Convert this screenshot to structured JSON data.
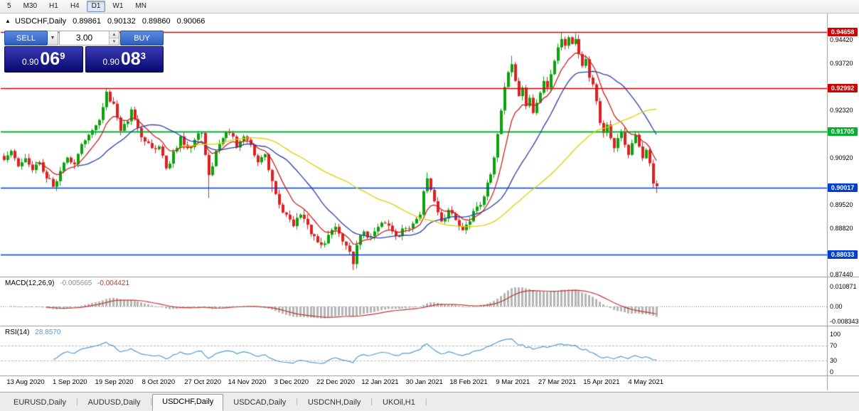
{
  "toolbar": {
    "timeframes": [
      {
        "label": "5",
        "active": false
      },
      {
        "label": "M30",
        "active": false
      },
      {
        "label": "H1",
        "active": false
      },
      {
        "label": "H4",
        "active": false
      },
      {
        "label": "D1",
        "active": true
      },
      {
        "label": "W1",
        "active": false
      },
      {
        "label": "MN",
        "active": false
      }
    ]
  },
  "chart_header": {
    "symbol": "USDCHF,Daily",
    "open": "0.89861",
    "high": "0.90132",
    "low": "0.89860",
    "close": "0.90066"
  },
  "trade_panel": {
    "sell_label": "SELL",
    "buy_label": "BUY",
    "volume": "3.00",
    "sell_price": {
      "prefix": "0.90",
      "big": "06",
      "sup": "9"
    },
    "buy_price": {
      "prefix": "0.90",
      "big": "08",
      "sup": "3"
    }
  },
  "indicators": {
    "macd": {
      "label": "MACD(12,26,9)",
      "main_value": "-0.005665",
      "signal_value": "-0.004421"
    },
    "rsi": {
      "label": "RSI(14)",
      "value": "28.8570"
    }
  },
  "tabs": [
    {
      "label": "EURUSD,Daily",
      "active": false
    },
    {
      "label": "AUDUSD,Daily",
      "active": false
    },
    {
      "label": "USDCHF,Daily",
      "active": true
    },
    {
      "label": "USDCAD,Daily",
      "active": false
    },
    {
      "label": "USDCNH,Daily",
      "active": false
    },
    {
      "label": "UKOil,H1",
      "active": false
    }
  ],
  "chart_data": {
    "type": "candlestick",
    "symbol": "USDCHF",
    "period": "Daily",
    "last_ohlc": {
      "open": 0.89861,
      "high": 0.90132,
      "low": 0.8986,
      "close": 0.90066
    },
    "n_candles": 186,
    "x_labels": [
      "13 Aug 2020",
      "1 Sep 2020",
      "19 Sep 2020",
      "8 Oct 2020",
      "27 Oct 2020",
      "14 Nov 2020",
      "3 Dec 2020",
      "22 Dec 2020",
      "12 Jan 2021",
      "30 Jan 2021",
      "18 Feb 2021",
      "9 Mar 2021",
      "27 Mar 2021",
      "15 Apr 2021",
      "4 May 2021"
    ],
    "y_axis": {
      "plain_labels": [
        "0.94420",
        "0.93720",
        "0.92320",
        "0.90920",
        "0.89520",
        "0.88820",
        "0.87440"
      ],
      "tagged_labels": [
        {
          "value": "0.94658",
          "color": "#d40000"
        },
        {
          "value": "0.92992",
          "color": "#d40000"
        },
        {
          "value": "0.91705",
          "color": "#00b22d"
        },
        {
          "value": "0.90017",
          "color": "#0040d0"
        },
        {
          "value": "0.88033",
          "color": "#0040d0"
        }
      ]
    },
    "h_lines": [
      {
        "price": 0.94658,
        "color": "#d40000",
        "width": 1.4
      },
      {
        "price": 0.92992,
        "color": "#d40000",
        "width": 1.4
      },
      {
        "price": 0.91705,
        "color": "#00b22d",
        "width": 2
      },
      {
        "price": 0.90017,
        "color": "#0040d0",
        "width": 1.6
      },
      {
        "price": 0.88033,
        "color": "#0040d0",
        "width": 1.4
      }
    ],
    "bull_color": "#0aa30a",
    "bear_color": "#e02020",
    "close_anchors": [
      [
        0,
        0.9085
      ],
      [
        2,
        0.9112
      ],
      [
        4,
        0.9066
      ],
      [
        6,
        0.909
      ],
      [
        8,
        0.9055
      ],
      [
        10,
        0.9078
      ],
      [
        12,
        0.903
      ],
      [
        14,
        0.9005
      ],
      [
        16,
        0.9052
      ],
      [
        18,
        0.9092
      ],
      [
        20,
        0.9072
      ],
      [
        22,
        0.9132
      ],
      [
        24,
        0.916
      ],
      [
        26,
        0.9188
      ],
      [
        28,
        0.9242
      ],
      [
        29,
        0.9288
      ],
      [
        31,
        0.9252
      ],
      [
        33,
        0.9172
      ],
      [
        35,
        0.92
      ],
      [
        36,
        0.9235
      ],
      [
        38,
        0.918
      ],
      [
        40,
        0.914
      ],
      [
        42,
        0.912
      ],
      [
        44,
        0.9125
      ],
      [
        46,
        0.906
      ],
      [
        48,
        0.911
      ],
      [
        50,
        0.9155
      ],
      [
        52,
        0.912
      ],
      [
        54,
        0.9145
      ],
      [
        56,
        0.9165
      ],
      [
        58,
        0.904
      ],
      [
        60,
        0.9112
      ],
      [
        62,
        0.915
      ],
      [
        64,
        0.9165
      ],
      [
        66,
        0.9122
      ],
      [
        68,
        0.9155
      ],
      [
        70,
        0.913
      ],
      [
        72,
        0.9078
      ],
      [
        74,
        0.9102
      ],
      [
        76,
        0.9022
      ],
      [
        78,
        0.8952
      ],
      [
        80,
        0.8922
      ],
      [
        82,
        0.8888
      ],
      [
        84,
        0.8922
      ],
      [
        86,
        0.8892
      ],
      [
        88,
        0.8858
      ],
      [
        90,
        0.8832
      ],
      [
        92,
        0.8862
      ],
      [
        94,
        0.8886
      ],
      [
        96,
        0.8842
      ],
      [
        98,
        0.8812
      ],
      [
        99,
        0.8775
      ],
      [
        100,
        0.8832
      ],
      [
        102,
        0.8872
      ],
      [
        104,
        0.8858
      ],
      [
        106,
        0.8886
      ],
      [
        108,
        0.8896
      ],
      [
        110,
        0.8872
      ],
      [
        112,
        0.8858
      ],
      [
        114,
        0.8882
      ],
      [
        116,
        0.8896
      ],
      [
        118,
        0.8922
      ],
      [
        119,
        0.8992
      ],
      [
        120,
        0.903
      ],
      [
        121,
        0.8996
      ],
      [
        122,
        0.8962
      ],
      [
        124,
        0.8902
      ],
      [
        126,
        0.8936
      ],
      [
        128,
        0.8906
      ],
      [
        130,
        0.8876
      ],
      [
        132,
        0.8902
      ],
      [
        134,
        0.8946
      ],
      [
        136,
        0.8976
      ],
      [
        138,
        0.9042
      ],
      [
        139,
        0.9092
      ],
      [
        140,
        0.9162
      ],
      [
        141,
        0.9232
      ],
      [
        142,
        0.9302
      ],
      [
        143,
        0.9346
      ],
      [
        144,
        0.937
      ],
      [
        145,
        0.932
      ],
      [
        146,
        0.9275
      ],
      [
        147,
        0.93
      ],
      [
        148,
        0.9245
      ],
      [
        149,
        0.927
      ],
      [
        150,
        0.9225
      ],
      [
        151,
        0.9255
      ],
      [
        152,
        0.9285
      ],
      [
        153,
        0.932
      ],
      [
        154,
        0.93
      ],
      [
        155,
        0.934
      ],
      [
        156,
        0.938
      ],
      [
        157,
        0.942
      ],
      [
        158,
        0.9445
      ],
      [
        159,
        0.9425
      ],
      [
        160,
        0.945
      ],
      [
        161,
        0.943
      ],
      [
        162,
        0.9445
      ],
      [
        163,
        0.94
      ],
      [
        164,
        0.9365
      ],
      [
        165,
        0.9385
      ],
      [
        166,
        0.933
      ],
      [
        167,
        0.931
      ],
      [
        168,
        0.926
      ],
      [
        169,
        0.9195
      ],
      [
        170,
        0.9165
      ],
      [
        171,
        0.919
      ],
      [
        172,
        0.915
      ],
      [
        173,
        0.912
      ],
      [
        174,
        0.915
      ],
      [
        175,
        0.917
      ],
      [
        176,
        0.913
      ],
      [
        177,
        0.91
      ],
      [
        178,
        0.9135
      ],
      [
        179,
        0.916
      ],
      [
        180,
        0.9125
      ],
      [
        181,
        0.909
      ],
      [
        182,
        0.9115
      ],
      [
        183,
        0.9075
      ],
      [
        184,
        0.9015
      ],
      [
        185,
        0.90066
      ]
    ],
    "wick_overrides": [
      {
        "i": 29,
        "high": 0.9296
      },
      {
        "i": 58,
        "low": 0.8972
      },
      {
        "i": 76,
        "low": 0.899
      },
      {
        "i": 99,
        "low": 0.8757
      },
      {
        "i": 120,
        "high": 0.9048
      },
      {
        "i": 144,
        "high": 0.9395
      },
      {
        "i": 158,
        "high": 0.94658
      },
      {
        "i": 162,
        "high": 0.9462
      },
      {
        "i": 185,
        "low": 0.8986
      }
    ],
    "moving_averages": [
      {
        "type": "ema",
        "period": 9,
        "color": "#cc2020"
      },
      {
        "type": "sma",
        "period": 21,
        "color": "#2b3fae"
      },
      {
        "type": "sma",
        "period": 50,
        "color": "#e0d000"
      }
    ],
    "macd": {
      "fast": 12,
      "slow": 26,
      "signal": 9,
      "axis_labels": [
        "0.010871",
        "0.00",
        "-0.008343"
      ],
      "hist_color": "#b5b5b5",
      "signal_color": "#c23535"
    },
    "rsi": {
      "period": 14,
      "levels": [
        70,
        30
      ],
      "axis_labels": [
        "100",
        "70",
        "30",
        "0"
      ],
      "color": "#4f9bd5"
    }
  }
}
